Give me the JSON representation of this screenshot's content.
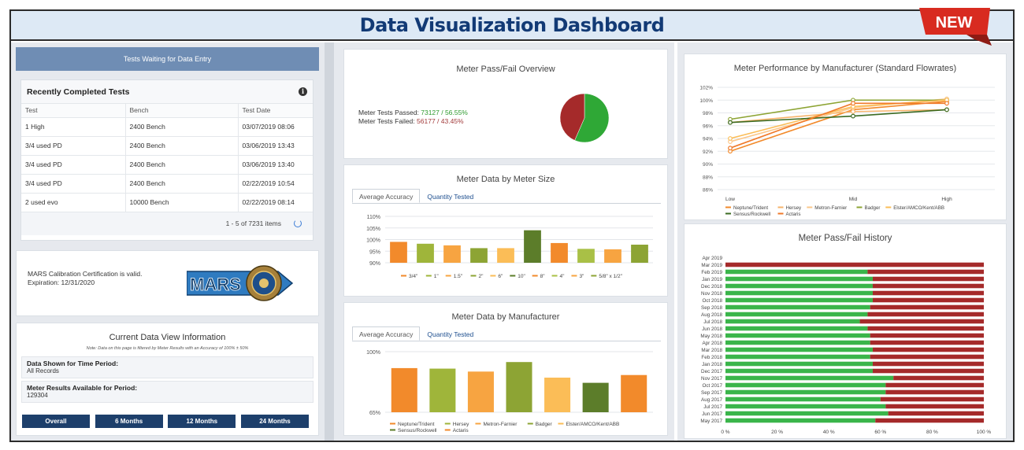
{
  "header": {
    "title": "Data Visualization Dashboard",
    "badge": "NEW"
  },
  "left": {
    "tests_waiting_label": "Tests Waiting for Data Entry",
    "recent": {
      "title": "Recently Completed Tests",
      "columns": [
        "Test",
        "Bench",
        "Test Date"
      ],
      "rows": [
        [
          "1 High",
          "2400 Bench",
          "03/07/2019 08:06"
        ],
        [
          "3/4 used PD",
          "2400 Bench",
          "03/06/2019 13:43"
        ],
        [
          "3/4 used PD",
          "2400 Bench",
          "03/06/2019 13:40"
        ],
        [
          "3/4 used PD",
          "2400 Bench",
          "02/22/2019 10:54"
        ],
        [
          "2 used evo",
          "10000 Bench",
          "02/22/2019 08:14"
        ]
      ],
      "pager": "1 - 5 of 7231 items"
    },
    "mars": {
      "line1": "MARS Calibration Certification is valid.",
      "line2": "Expiration: 12/31/2020",
      "logo_text": "MARS"
    },
    "dataview": {
      "title": "Current Data View Information",
      "note": "Note: Data on this page is filtered by Meter Results with an Accuracy of 100% ± 50%",
      "period_label": "Data Shown for Time Period:",
      "period_value": "All Records",
      "results_label": "Meter Results Available for Period:",
      "results_value": "129304",
      "buttons": [
        "Overall",
        "6 Months",
        "12 Months",
        "24 Months"
      ]
    }
  },
  "passfail": {
    "title": "Meter Pass/Fail Overview",
    "passed_label": "Meter Tests Passed:",
    "passed_value": "73127 / 56.55%",
    "failed_label": "Meter Tests Failed:",
    "failed_value": "56177 / 43.45%",
    "colors": {
      "pass": "#2fa836",
      "fail": "#a52a2a"
    },
    "chart_data": {
      "type": "pie",
      "labels": [
        "Passed",
        "Failed"
      ],
      "values": [
        56.55,
        43.45
      ]
    }
  },
  "bysize": {
    "title": "Meter Data by Meter Size",
    "tabs": [
      "Average Accuracy",
      "Quantity Tested"
    ],
    "chart_data": {
      "type": "bar",
      "categories": [
        "3/4\"",
        "1\"",
        "1.5\"",
        "2\"",
        "6\"",
        "10\"",
        "8\"",
        "4\"",
        "3\"",
        "5/8\" x 1/2\""
      ],
      "values": [
        99.0,
        98.2,
        97.5,
        96.3,
        96.3,
        104.0,
        98.5,
        96.0,
        95.8,
        97.8
      ],
      "colors": [
        "#f28a2b",
        "#9fb53a",
        "#f7a441",
        "#8da434",
        "#fbbd57",
        "#5c7d2a",
        "#f28a2b",
        "#a9c046",
        "#f7a441",
        "#8da434"
      ],
      "yticks": [
        "110%",
        "105%",
        "100%",
        "95%",
        "90%"
      ],
      "ylim": [
        90,
        110
      ]
    }
  },
  "bymfr": {
    "title": "Meter Data by Manufacturer",
    "tabs": [
      "Average Accuracy",
      "Quantity Tested"
    ],
    "chart_data": {
      "type": "bar",
      "categories": [
        "Neptune/Trident",
        "Hersey",
        "Metron-Farnier",
        "Badger",
        "Elster/AMCO/Kent/ABB",
        "Sensus/Rockwell",
        "Actaris"
      ],
      "values": [
        90.5,
        90.2,
        88.5,
        94.0,
        85.0,
        82.0,
        86.5
      ],
      "colors": [
        "#f28a2b",
        "#9fb53a",
        "#f7a441",
        "#8da434",
        "#fbbd57",
        "#5c7d2a",
        "#f28a2b"
      ],
      "yticks": [
        "100%",
        "65%"
      ],
      "ylim": [
        65,
        100
      ]
    }
  },
  "performance": {
    "title": "Meter Performance by Manufacturer (Standard Flowrates)",
    "chart_data": {
      "type": "line",
      "categories": [
        "Low",
        "Mid",
        "High"
      ],
      "yticks": [
        "102%",
        "100%",
        "98%",
        "96%",
        "94%",
        "92%",
        "90%",
        "88%",
        "86%"
      ],
      "ylim": [
        86,
        102
      ],
      "series": [
        {
          "name": "Neptune/Trident",
          "values": [
            92.0,
            98.5,
            99.8
          ],
          "color": "#f28a2b"
        },
        {
          "name": "Hersey",
          "values": [
            96.5,
            98.2,
            98.5
          ],
          "color": "#f6b36b"
        },
        {
          "name": "Metron-Farnier",
          "values": [
            93.5,
            98.8,
            100.2
          ],
          "color": "#fbc78a"
        },
        {
          "name": "Badger",
          "values": [
            97.0,
            100.0,
            100.0
          ],
          "color": "#8da434"
        },
        {
          "name": "Elster/AMCO/Kent/ABB",
          "values": [
            94.0,
            99.0,
            100.0
          ],
          "color": "#fbbd57"
        },
        {
          "name": "Sensus/Rockwell",
          "values": [
            96.5,
            97.5,
            98.5
          ],
          "color": "#3b6b22"
        },
        {
          "name": "Actaris",
          "values": [
            92.5,
            99.5,
            99.5
          ],
          "color": "#f07a2a"
        }
      ]
    }
  },
  "history": {
    "title": "Meter Pass/Fail History",
    "colors": {
      "pass": "#3ab54a",
      "fail": "#a52a2a"
    },
    "chart_data": {
      "type": "bar",
      "orientation": "horizontal",
      "stacked": true,
      "categories": [
        "Apr 2019",
        "Mar 2019",
        "Feb 2019",
        "Jan 2019",
        "Dec 2018",
        "Nov 2018",
        "Oct 2018",
        "Sep 2018",
        "Aug 2018",
        "Jul 2018",
        "Jun 2018",
        "May 2018",
        "Apr 2018",
        "Mar 2018",
        "Feb 2018",
        "Jan 2018",
        "Dec 2017",
        "Nov 2017",
        "Oct 2017",
        "Sep 2017",
        "Aug 2017",
        "Jul 2017",
        "Jun 2017",
        "May 2017"
      ],
      "series": [
        {
          "name": "Passed",
          "values": [
            0,
            0,
            55,
            57,
            57,
            57,
            57,
            56,
            55,
            52,
            55,
            56,
            56,
            57,
            56,
            57,
            57,
            65,
            62,
            62,
            60,
            62,
            63,
            58
          ]
        },
        {
          "name": "Failed",
          "values": [
            0,
            100,
            45,
            43,
            43,
            43,
            43,
            44,
            45,
            48,
            45,
            44,
            44,
            43,
            44,
            43,
            43,
            35,
            38,
            38,
            40,
            38,
            37,
            42
          ]
        }
      ],
      "xticks": [
        "0 %",
        "20 %",
        "40 %",
        "60 %",
        "80 %",
        "100 %"
      ],
      "xlim": [
        0,
        100
      ]
    }
  }
}
